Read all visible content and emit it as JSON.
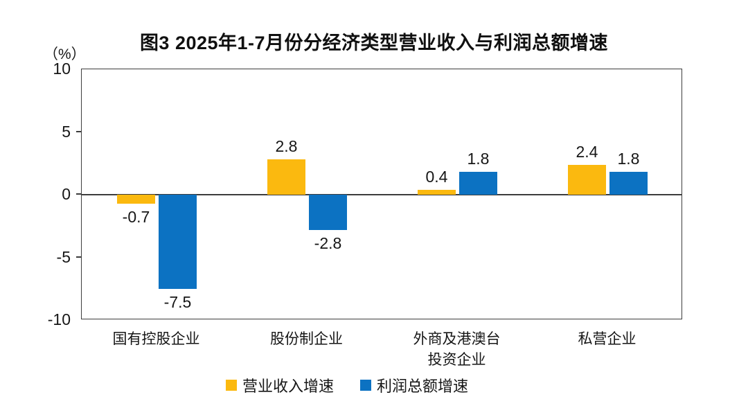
{
  "figure": {
    "title": "图3 2025年1-7月份分经济类型营业收入与利润总额增速",
    "unit_label": "（%）"
  },
  "chart_data": {
    "type": "bar",
    "title": "图3 2025年1-7月份分经济类型营业收入与利润总额增速",
    "ylabel": "（%）",
    "xlabel": "",
    "categories": [
      "国有控股企业",
      "股份制企业",
      "外商及港澳台\n投资企业",
      "私营企业"
    ],
    "series": [
      {
        "name": "营业收入增速",
        "color": "#FBB90F",
        "values": [
          -0.7,
          2.8,
          0.4,
          2.4
        ]
      },
      {
        "name": "利润总额增速",
        "color": "#0C72C2",
        "values": [
          -7.5,
          -2.8,
          1.8,
          1.8
        ]
      }
    ],
    "data_labels": [
      [
        "-0.7",
        "2.8",
        "0.4",
        "2.4"
      ],
      [
        "-7.5",
        "-2.8",
        "1.8",
        "1.8"
      ]
    ],
    "ylim": [
      -10,
      10
    ],
    "yticks": [
      10,
      5,
      0,
      -5,
      -10
    ],
    "grid": false,
    "legend_position": "bottom",
    "axis_color": "#3c3c3c",
    "text_color": "#161616",
    "background_color": "#ffffff"
  }
}
